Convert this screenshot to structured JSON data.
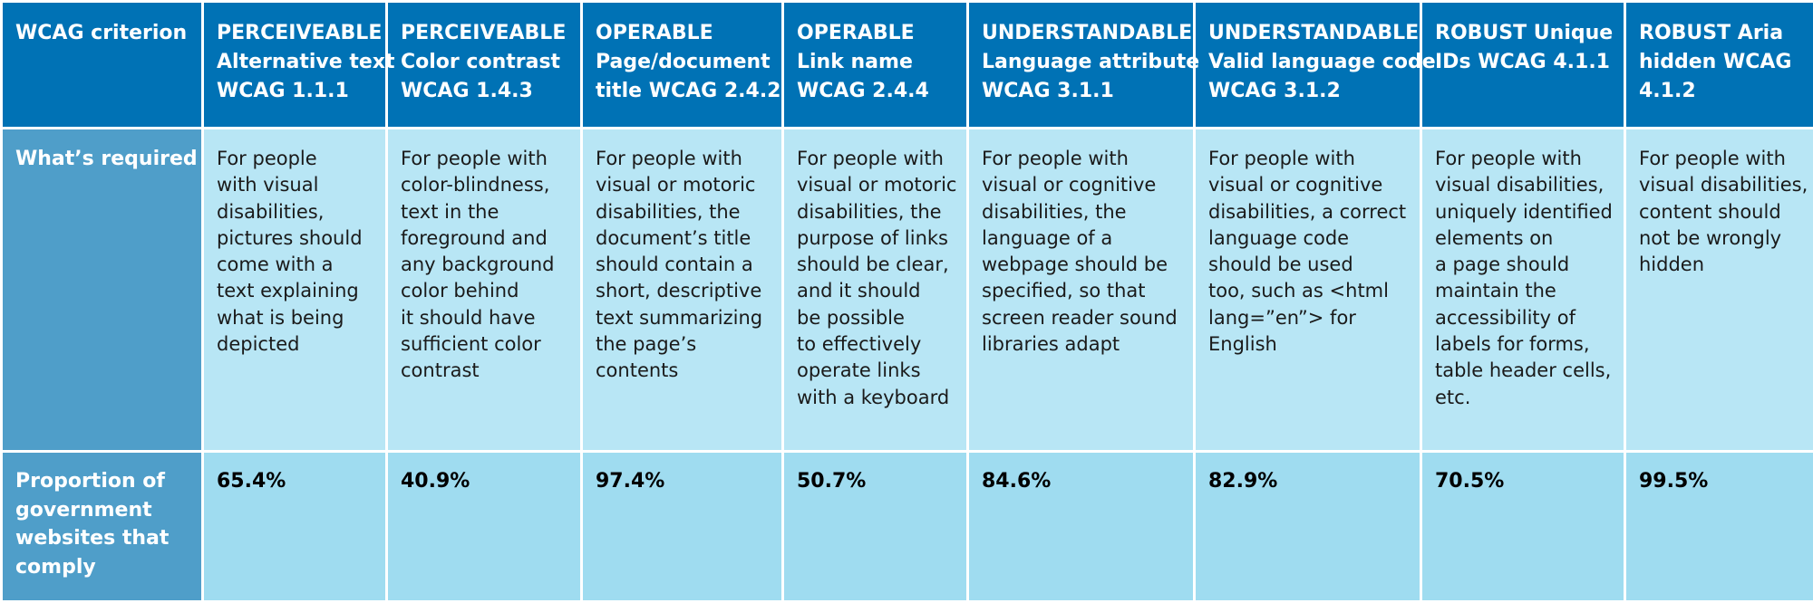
{
  "table": {
    "header_label": "WCAG criterion",
    "required_label": "What’s required",
    "proportion_label": [
      "Proportion of",
      "government",
      "websites that",
      "comply"
    ],
    "criteria": [
      {
        "title": [
          "PERCEIVEABLE",
          "Alternative text",
          "WCAG 1.1.1"
        ],
        "required": [
          "For people",
          "with visual",
          "disabilities,",
          "pictures should",
          "come with a",
          "text explaining",
          "what is being",
          "depicted"
        ],
        "proportion": "65.4%"
      },
      {
        "title": [
          "PERCEIVEABLE",
          "Color contrast",
          "WCAG 1.4.3"
        ],
        "required": [
          "For people with",
          "color-blindness,",
          "text in the",
          "foreground and",
          "any background",
          "color behind",
          "it should have",
          "sufficient color",
          "contrast"
        ],
        "proportion": "40.9%"
      },
      {
        "title": [
          "OPERABLE",
          "Page/document",
          "title WCAG 2.4.2"
        ],
        "required": [
          "For people with",
          "visual or motoric",
          "disabilities, the",
          "document’s title",
          "should contain a",
          "short, descriptive",
          "text summarizing",
          "the page’s",
          "contents"
        ],
        "proportion": "97.4%"
      },
      {
        "title": [
          "OPERABLE",
          "Link name",
          "WCAG 2.4.4"
        ],
        "required": [
          "For people with",
          "visual or motoric",
          "disabilities, the",
          "purpose of links",
          "should be clear,",
          "and it should",
          "be possible",
          "to effectively",
          "operate links",
          "with a keyboard"
        ],
        "proportion": "50.7%"
      },
      {
        "title": [
          "UNDERSTANDABLE",
          "Language attribute",
          "WCAG 3.1.1"
        ],
        "required": [
          "For people with",
          "visual or cognitive",
          "disabilities, the",
          "language of a",
          "webpage should be",
          "specified, so that",
          "screen reader sound",
          "libraries adapt"
        ],
        "proportion": "84.6%"
      },
      {
        "title": [
          "UNDERSTANDABLE",
          "Valid language code",
          "WCAG 3.1.2"
        ],
        "required": [
          "For people with",
          "visual or cognitive",
          "disabilities, a correct",
          "language code",
          "should be used",
          "too, such as <html",
          "lang=”en”> for",
          "English"
        ],
        "proportion": "82.9%"
      },
      {
        "title": [
          "ROBUST Unique",
          "IDs WCAG 4.1.1"
        ],
        "required": [
          "For people with",
          "visual disabilities,",
          "uniquely identified",
          "elements on",
          "a page should",
          "maintain the",
          "accessibility of",
          "labels for forms,",
          "table header cells,",
          "etc."
        ],
        "proportion": "70.5%"
      },
      {
        "title": [
          "ROBUST Aria",
          "hidden WCAG",
          "4.1.2"
        ],
        "required": [
          "For people with",
          "visual disabilities,",
          "content should",
          "not be wrongly",
          "hidden"
        ],
        "proportion": "99.5%"
      }
    ]
  }
}
